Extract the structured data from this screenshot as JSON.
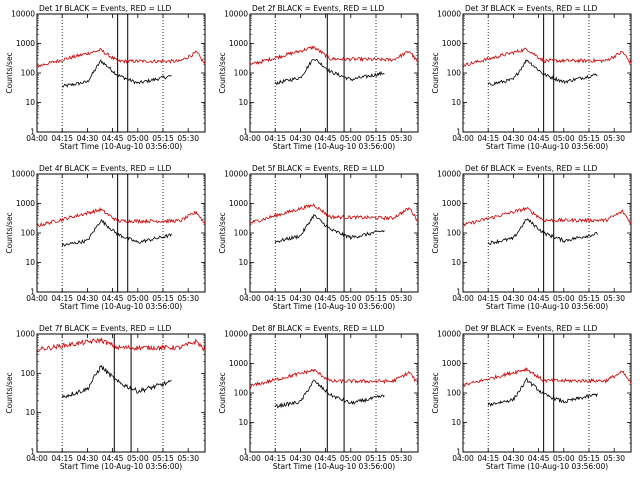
{
  "chart_data": [
    {
      "type": "line",
      "title": "Det 1f BLACK = Events, RED = LLD",
      "xlabel": "Start Time (10-Aug-10 03:56:00)",
      "ylabel": "Counts/sec",
      "yscale": "log",
      "ylim": [
        1,
        10000
      ],
      "xlim": [
        "04:00",
        "05:40"
      ],
      "xticks": [
        "04:00",
        "04:15",
        "04:30",
        "04:45",
        "05:00",
        "05:15",
        "05:30"
      ],
      "yticks": [
        "1",
        "10",
        "100",
        "1000",
        "10000"
      ],
      "legend": "none",
      "grid": false,
      "dotted_lines": [
        "04:15",
        "05:15"
      ],
      "solid_lines": [
        "04:48",
        "04:54"
      ],
      "series": [
        {
          "name": "BLACK",
          "color": "#000000",
          "x": [
            "04:15",
            "04:30",
            "04:38",
            "04:48",
            "05:00",
            "05:20"
          ],
          "y": [
            35,
            50,
            260,
            85,
            45,
            80
          ]
        },
        {
          "name": "RED",
          "color": "#cc0000",
          "x": [
            "04:00",
            "04:38",
            "04:48",
            "05:25",
            "05:35",
            "05:40"
          ],
          "y": [
            170,
            600,
            250,
            250,
            500,
            200
          ]
        }
      ]
    },
    {
      "type": "line",
      "title": "Det 2f BLACK = Events, RED = LLD",
      "xlabel": "Start Time (10-Aug-10 03:56:00)",
      "ylabel": "Counts/sec",
      "yscale": "log",
      "ylim": [
        1,
        10000
      ],
      "xlim": [
        "04:00",
        "05:40"
      ],
      "xticks": [
        "04:00",
        "04:15",
        "04:30",
        "04:45",
        "05:00",
        "05:15",
        "05:30"
      ],
      "yticks": [
        "1",
        "10",
        "100",
        "1000",
        "10000"
      ],
      "legend": "none",
      "grid": false,
      "dotted_lines": [
        "04:15",
        "05:15"
      ],
      "solid_lines": [
        "04:46",
        "04:56"
      ],
      "series": [
        {
          "name": "BLACK",
          "color": "#000000",
          "x": [
            "04:15",
            "04:30",
            "04:38",
            "04:48",
            "05:00",
            "05:20"
          ],
          "y": [
            45,
            70,
            320,
            110,
            60,
            100
          ]
        },
        {
          "name": "RED",
          "color": "#cc0000",
          "x": [
            "04:00",
            "04:38",
            "04:48",
            "05:25",
            "05:35",
            "05:40"
          ],
          "y": [
            190,
            750,
            300,
            280,
            550,
            220
          ]
        }
      ]
    },
    {
      "type": "line",
      "title": "Det 3f BLACK = Events, RED = LLD",
      "xlabel": "Start Time (10-Aug-10 03:56:00)",
      "ylabel": "Counts/sec",
      "yscale": "log",
      "ylim": [
        1,
        10000
      ],
      "xlim": [
        "04:00",
        "05:40"
      ],
      "xticks": [
        "04:00",
        "04:15",
        "04:30",
        "04:45",
        "05:00",
        "05:15",
        "05:30"
      ],
      "yticks": [
        "1",
        "10",
        "100",
        "1000",
        "10000"
      ],
      "legend": "none",
      "grid": false,
      "dotted_lines": [
        "04:15",
        "05:15"
      ],
      "solid_lines": [
        "04:48",
        "04:54"
      ],
      "series": [
        {
          "name": "BLACK",
          "color": "#000000",
          "x": [
            "04:15",
            "04:30",
            "04:38",
            "04:48",
            "05:00",
            "05:20"
          ],
          "y": [
            40,
            60,
            280,
            90,
            50,
            90
          ]
        },
        {
          "name": "RED",
          "color": "#cc0000",
          "x": [
            "04:00",
            "04:38",
            "04:48",
            "05:25",
            "05:35",
            "05:40"
          ],
          "y": [
            180,
            650,
            260,
            260,
            520,
            210
          ]
        }
      ]
    },
    {
      "type": "line",
      "title": "Det 4f BLACK = Events, RED = LLD",
      "xlabel": "Start Time (10-Aug-10 03:56:00)",
      "ylabel": "Counts/sec",
      "yscale": "log",
      "ylim": [
        1,
        10000
      ],
      "xlim": [
        "04:00",
        "05:40"
      ],
      "xticks": [
        "04:00",
        "04:15",
        "04:30",
        "04:45",
        "05:00",
        "05:15",
        "05:30"
      ],
      "yticks": [
        "1",
        "10",
        "100",
        "1000",
        "10000"
      ],
      "legend": "none",
      "grid": false,
      "dotted_lines": [
        "04:15",
        "05:15"
      ],
      "solid_lines": [
        "04:48",
        "04:54"
      ],
      "series": [
        {
          "name": "BLACK",
          "color": "#000000",
          "x": [
            "04:15",
            "04:30",
            "04:38",
            "04:48",
            "05:00",
            "05:20"
          ],
          "y": [
            38,
            55,
            270,
            90,
            48,
            85
          ]
        },
        {
          "name": "RED",
          "color": "#cc0000",
          "x": [
            "04:00",
            "04:38",
            "04:48",
            "05:25",
            "05:35",
            "05:40"
          ],
          "y": [
            175,
            620,
            255,
            255,
            510,
            205
          ]
        }
      ]
    },
    {
      "type": "line",
      "title": "Det 5f BLACK = Events, RED = LLD",
      "xlabel": "Start Time (10-Aug-10 03:56:00)",
      "ylabel": "Counts/sec",
      "yscale": "log",
      "ylim": [
        1,
        10000
      ],
      "xlim": [
        "04:00",
        "05:40"
      ],
      "xticks": [
        "04:00",
        "04:15",
        "04:30",
        "04:45",
        "05:00",
        "05:15",
        "05:30"
      ],
      "yticks": [
        "1",
        "10",
        "100",
        "1000",
        "10000"
      ],
      "legend": "none",
      "grid": false,
      "dotted_lines": [
        "04:15",
        "05:15"
      ],
      "solid_lines": [
        "04:46",
        "04:56"
      ],
      "series": [
        {
          "name": "BLACK",
          "color": "#000000",
          "x": [
            "04:15",
            "04:30",
            "04:38",
            "04:48",
            "05:00",
            "05:20"
          ],
          "y": [
            50,
            80,
            400,
            130,
            70,
            120
          ]
        },
        {
          "name": "RED",
          "color": "#cc0000",
          "x": [
            "04:00",
            "04:38",
            "04:48",
            "05:25",
            "05:35",
            "05:40"
          ],
          "y": [
            220,
            900,
            350,
            320,
            700,
            250
          ]
        }
      ]
    },
    {
      "type": "line",
      "title": "Det 6f BLACK = Events, RED = LLD",
      "xlabel": "Start Time (10-Aug-10 03:56:00)",
      "ylabel": "Counts/sec",
      "yscale": "log",
      "ylim": [
        1,
        10000
      ],
      "xlim": [
        "04:00",
        "05:40"
      ],
      "xticks": [
        "04:00",
        "04:15",
        "04:30",
        "04:45",
        "05:00",
        "05:15",
        "05:30"
      ],
      "yticks": [
        "1",
        "10",
        "100",
        "1000",
        "10000"
      ],
      "legend": "none",
      "grid": false,
      "dotted_lines": [
        "04:15",
        "05:15"
      ],
      "solid_lines": [
        "04:48",
        "04:54"
      ],
      "series": [
        {
          "name": "BLACK",
          "color": "#000000",
          "x": [
            "04:15",
            "04:30",
            "04:38",
            "04:48",
            "05:00",
            "05:20"
          ],
          "y": [
            45,
            65,
            300,
            100,
            55,
            95
          ]
        },
        {
          "name": "RED",
          "color": "#cc0000",
          "x": [
            "04:00",
            "04:38",
            "04:48",
            "05:25",
            "05:35",
            "05:40"
          ],
          "y": [
            185,
            680,
            270,
            270,
            540,
            215
          ]
        }
      ]
    },
    {
      "type": "line",
      "title": "Det 7f BLACK = Events, RED = LLD",
      "xlabel": "Start Time (10-Aug-10 03:56:00)",
      "ylabel": "Counts/sec",
      "yscale": "log",
      "ylim": [
        1,
        1000
      ],
      "xlim": [
        "04:00",
        "05:40"
      ],
      "xticks": [
        "04:00",
        "04:15",
        "04:30",
        "04:45",
        "05:00",
        "05:15",
        "05:30"
      ],
      "yticks": [
        "1",
        "10",
        "100",
        "1000"
      ],
      "legend": "none",
      "grid": false,
      "dotted_lines": [
        "04:15",
        "05:15"
      ],
      "solid_lines": [
        "04:46",
        "04:56"
      ],
      "series": [
        {
          "name": "BLACK",
          "color": "#000000",
          "x": [
            "04:15",
            "04:30",
            "04:38",
            "04:48",
            "05:00",
            "05:20"
          ],
          "y": [
            25,
            40,
            150,
            60,
            35,
            60
          ]
        },
        {
          "name": "RED",
          "color": "#cc0000",
          "x": [
            "04:00",
            "04:38",
            "04:48",
            "05:25",
            "05:35",
            "05:40"
          ],
          "y": [
            400,
            700,
            450,
            450,
            650,
            380
          ]
        }
      ]
    },
    {
      "type": "line",
      "title": "Det 8f BLACK = Events, RED = LLD",
      "xlabel": "Start Time (10-Aug-10 03:56:00)",
      "ylabel": "Counts/sec",
      "yscale": "log",
      "ylim": [
        1,
        10000
      ],
      "xlim": [
        "04:00",
        "05:40"
      ],
      "xticks": [
        "04:00",
        "04:15",
        "04:30",
        "04:45",
        "05:00",
        "05:15",
        "05:30"
      ],
      "yticks": [
        "1",
        "10",
        "100",
        "1000",
        "10000"
      ],
      "legend": "none",
      "grid": false,
      "dotted_lines": [
        "04:15",
        "05:15"
      ],
      "solid_lines": [
        "04:46",
        "04:56"
      ],
      "series": [
        {
          "name": "BLACK",
          "color": "#000000",
          "x": [
            "04:15",
            "04:30",
            "04:38",
            "04:48",
            "05:00",
            "05:20"
          ],
          "y": [
            35,
            50,
            260,
            85,
            45,
            80
          ]
        },
        {
          "name": "RED",
          "color": "#cc0000",
          "x": [
            "04:00",
            "04:38",
            "04:48",
            "05:25",
            "05:35",
            "05:40"
          ],
          "y": [
            170,
            600,
            250,
            250,
            500,
            200
          ]
        }
      ]
    },
    {
      "type": "line",
      "title": "Det 9f BLACK = Events, RED = LLD",
      "xlabel": "Start Time (10-Aug-10 03:56:00)",
      "ylabel": "Counts/sec",
      "yscale": "log",
      "ylim": [
        1,
        10000
      ],
      "xlim": [
        "04:00",
        "05:40"
      ],
      "xticks": [
        "04:00",
        "04:15",
        "04:30",
        "04:45",
        "05:00",
        "05:15",
        "05:30"
      ],
      "yticks": [
        "1",
        "10",
        "100",
        "1000",
        "10000"
      ],
      "legend": "none",
      "grid": false,
      "dotted_lines": [
        "04:15",
        "05:15"
      ],
      "solid_lines": [
        "04:48",
        "04:54"
      ],
      "series": [
        {
          "name": "BLACK",
          "color": "#000000",
          "x": [
            "04:15",
            "04:30",
            "04:38",
            "04:48",
            "05:00",
            "05:20"
          ],
          "y": [
            40,
            60,
            280,
            90,
            50,
            90
          ]
        },
        {
          "name": "RED",
          "color": "#cc0000",
          "x": [
            "04:00",
            "04:38",
            "04:48",
            "05:25",
            "05:35",
            "05:40"
          ],
          "y": [
            180,
            650,
            260,
            260,
            520,
            210
          ]
        }
      ]
    }
  ]
}
